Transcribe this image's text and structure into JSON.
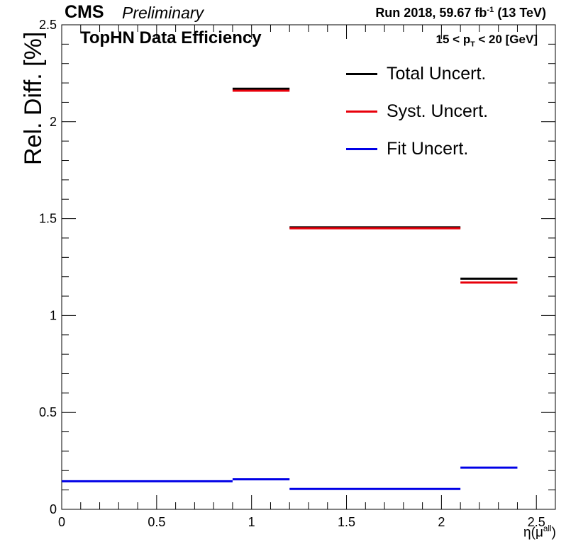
{
  "header": {
    "experiment": "CMS",
    "status": "Preliminary",
    "run_prefix": "Run 2018,  59.67 fb",
    "run_exp": "-1",
    "run_suffix": "  (13 TeV)"
  },
  "panel": {
    "title": "TopHN Data Efficiency",
    "pt_pre": "15 < p",
    "pt_sub": "T",
    "pt_post": " < 20 [GeV]"
  },
  "axes": {
    "ylabel": "Rel. Diff. [%]",
    "xlabel_pre": "η(μ",
    "xlabel_sup": "all",
    "xlabel_post": ")"
  },
  "legend": [
    {
      "label": "Total Uncert.",
      "color": "#000000"
    },
    {
      "label": "Syst. Uncert.",
      "color": "#e8000b"
    },
    {
      "label": "Fit Uncert.",
      "color": "#0000e6"
    }
  ],
  "chart_data": {
    "type": "step",
    "xlim": [
      0,
      2.6
    ],
    "ylim": [
      0,
      2.5
    ],
    "x_ticks": [
      "0",
      "0.5",
      "1",
      "1.5",
      "2",
      "2.5"
    ],
    "y_ticks": [
      "0",
      "0.5",
      "1",
      "1.5",
      "2",
      "2.5"
    ],
    "grid": false,
    "legend_position": "top-right",
    "bin_edges": [
      0,
      0.9,
      1.2,
      2.1,
      2.4
    ],
    "series": [
      {
        "name": "Total Uncert.",
        "color": "#000000",
        "values": [
          null,
          2.17,
          1.455,
          1.19
        ]
      },
      {
        "name": "Syst. Uncert.",
        "color": "#e8000b",
        "values": [
          null,
          2.16,
          1.45,
          1.17
        ]
      },
      {
        "name": "Fit Uncert.",
        "color": "#0000e6",
        "values": [
          0.145,
          0.155,
          0.105,
          0.215
        ]
      }
    ]
  }
}
